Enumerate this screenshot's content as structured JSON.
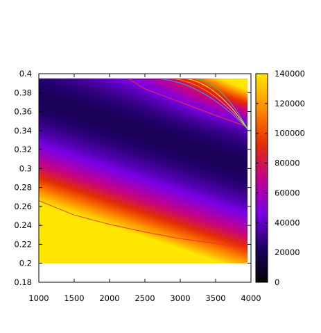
{
  "chart_data": {
    "type": "heatmap",
    "title": "",
    "xlabel": "",
    "ylabel": "",
    "xlim": [
      1000,
      4000
    ],
    "ylim": [
      0.18,
      0.4
    ],
    "data_x_range": [
      1000,
      3950
    ],
    "data_y_range": [
      0.2,
      0.395
    ],
    "x_ticks": [
      "1000",
      "1500",
      "2000",
      "2500",
      "3000",
      "3500",
      "4000"
    ],
    "x_tick_values": [
      1000,
      1500,
      2000,
      2500,
      3000,
      3500,
      4000
    ],
    "y_ticks": [
      "0.4",
      "0.38",
      "0.36",
      "0.34",
      "0.32",
      "0.3",
      "0.28",
      "0.26",
      "0.24",
      "0.22",
      "0.2",
      "0.18"
    ],
    "y_tick_values": [
      0.4,
      0.38,
      0.36,
      0.34,
      0.32,
      0.3,
      0.28,
      0.26,
      0.24,
      0.22,
      0.2,
      0.18
    ],
    "colorbar": {
      "range": [
        0,
        140000
      ],
      "ticks": [
        "140000",
        "120000",
        "100000",
        "80000",
        "60000",
        "40000",
        "20000",
        "0"
      ],
      "tick_values": [
        140000,
        120000,
        100000,
        80000,
        60000,
        40000,
        20000,
        0
      ],
      "palette": "black-purple-red-orange-yellow",
      "colors": [
        "#000000",
        "#1f0066",
        "#7a00e6",
        "#c4008a",
        "#e62f00",
        "#ff8c00",
        "#ffe600"
      ]
    },
    "contour_levels": [
      {
        "level": 20000,
        "color": "#ff2a2a"
      },
      {
        "level": 60000,
        "color": "#ff2a2a"
      },
      {
        "level": 80000,
        "color": "#3399ff"
      },
      {
        "level": 100000,
        "color": "#ff8c1a"
      },
      {
        "level": 120000,
        "color": "#ffee33"
      },
      {
        "level": 130000,
        "color": "#22cc88"
      }
    ],
    "contour_20000": {
      "x": [
        1000,
        1500,
        2000,
        2500,
        3000,
        3500,
        3950
      ],
      "y": [
        0.266,
        0.251,
        0.241,
        0.233,
        0.226,
        0.221,
        0.216
      ]
    },
    "contour_60000": {
      "x": [
        2260,
        2500,
        3000,
        3500,
        3950
      ],
      "y": [
        0.395,
        0.384,
        0.37,
        0.356,
        0.344
      ]
    },
    "grid": false,
    "legend": "none"
  }
}
